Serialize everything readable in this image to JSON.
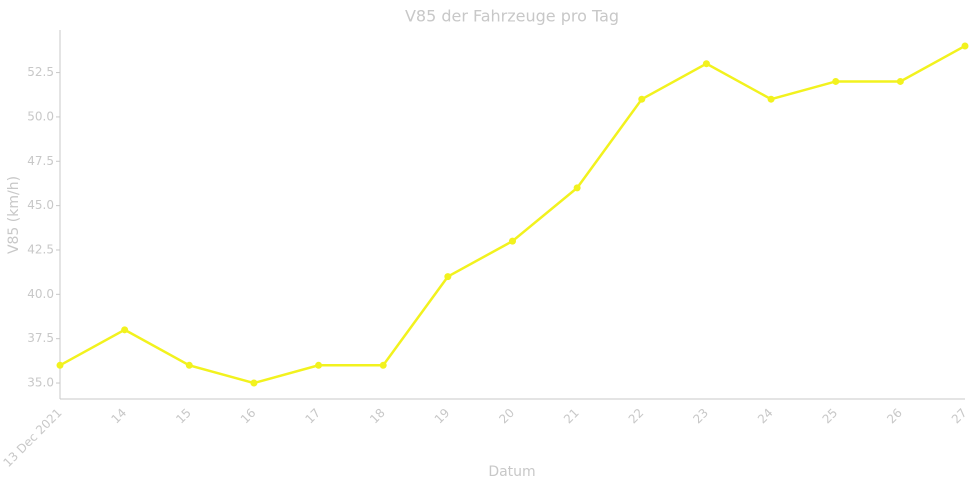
{
  "chart_data": {
    "type": "line",
    "title": "V85 der Fahrzeuge pro Tag",
    "x_label": "Datum",
    "y_label": "V85 (km/h)",
    "categories": [
      "13 Dec 2021",
      "14",
      "15",
      "16",
      "17",
      "18",
      "19",
      "20",
      "21",
      "22",
      "23",
      "24",
      "25",
      "26",
      "27"
    ],
    "series": [
      {
        "name": "V85",
        "color": "#f2f21e",
        "values": [
          36,
          38,
          36,
          35,
          36,
          36,
          41,
          43,
          46,
          51,
          53,
          51,
          52,
          52,
          54
        ]
      }
    ],
    "ylim": [
      34.1,
      54.9
    ],
    "yticks": [
      {
        "value": 35,
        "label": "35.0"
      },
      37.5,
      {
        "value": 40,
        "label": "40.0"
      },
      42.5,
      {
        "value": 45,
        "label": "45.0"
      },
      47.5,
      {
        "value": 50,
        "label": "50.0"
      },
      52.5
    ],
    "grid": false
  }
}
